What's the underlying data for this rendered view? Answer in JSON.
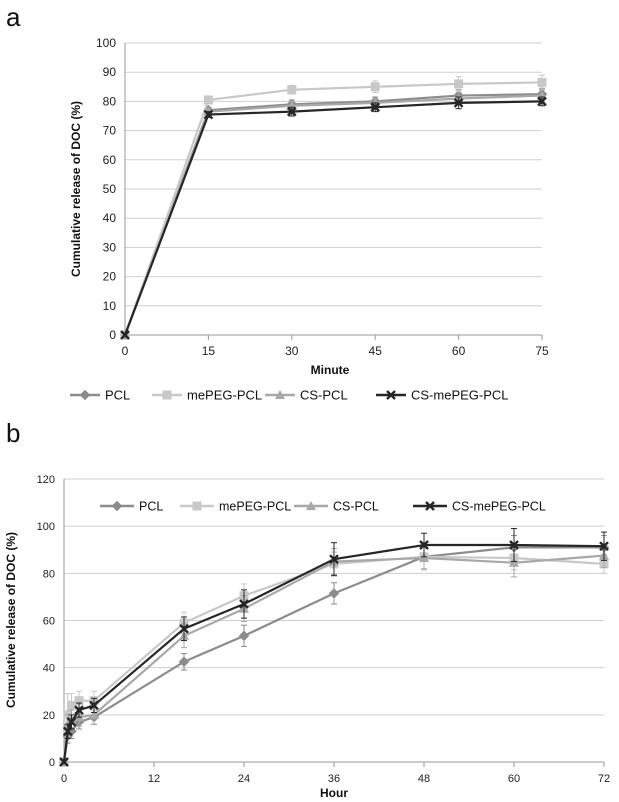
{
  "chart_data": [
    {
      "panel": "a",
      "type": "line",
      "xlabel": "Minute",
      "ylabel": "Cumulative release of DOC (%)",
      "xlim": [
        0,
        75
      ],
      "ylim": [
        0,
        100
      ],
      "x_ticks": [
        0,
        15,
        30,
        45,
        60,
        75
      ],
      "y_ticks": [
        0,
        10,
        20,
        30,
        40,
        50,
        60,
        70,
        80,
        90,
        100
      ],
      "grid": true,
      "legend_position": "bottom",
      "x": [
        0,
        15,
        30,
        45,
        60,
        75
      ],
      "series": [
        {
          "name": "PCL",
          "marker": "diamond",
          "color": "#8c8c8c",
          "values": [
            0,
            77,
            79,
            80,
            82,
            82.5
          ],
          "errors": [
            0,
            1,
            1.5,
            1.5,
            2,
            2
          ]
        },
        {
          "name": "mePEG-PCL",
          "marker": "square",
          "color": "#c8c8c8",
          "values": [
            0,
            80.5,
            84,
            85,
            86,
            86.5
          ],
          "errors": [
            0,
            1,
            1.5,
            2,
            2.5,
            2.5
          ]
        },
        {
          "name": "CS-PCL",
          "marker": "triangle",
          "color": "#a8a8a8",
          "values": [
            0,
            76.5,
            78.5,
            79.5,
            81,
            82
          ],
          "errors": [
            0,
            1,
            1.5,
            1.5,
            2,
            2
          ]
        },
        {
          "name": "CS-mePEG-PCL",
          "marker": "x",
          "color": "#262626",
          "values": [
            0,
            75.5,
            76.5,
            78,
            79.5,
            80
          ],
          "errors": [
            0,
            1,
            1.5,
            1.5,
            2,
            1.5
          ]
        }
      ]
    },
    {
      "panel": "b",
      "type": "line",
      "xlabel": "Hour",
      "ylabel": "Cumulative release of DOC (%)",
      "xlim": [
        0,
        72
      ],
      "ylim": [
        0,
        120
      ],
      "x_ticks": [
        0,
        12,
        24,
        36,
        48,
        60,
        72
      ],
      "y_ticks": [
        0,
        20,
        40,
        60,
        80,
        100,
        120
      ],
      "grid": true,
      "legend_position": "top",
      "x": [
        0,
        0.5,
        1,
        2,
        4,
        16,
        24,
        36,
        48,
        60,
        72
      ],
      "series": [
        {
          "name": "PCL",
          "marker": "diamond",
          "color": "#8c8c8c",
          "values": [
            0,
            11,
            13,
            17,
            19,
            42.5,
            53.5,
            71.5,
            87,
            91,
            91
          ],
          "errors": [
            0,
            3,
            3,
            3,
            3,
            3.5,
            4.5,
            4.5,
            5,
            5,
            5
          ]
        },
        {
          "name": "mePEG-PCL",
          "marker": "square",
          "color": "#c8c8c8",
          "values": [
            0,
            20,
            24,
            26,
            26,
            59,
            70.5,
            84,
            87,
            86.5,
            84
          ],
          "errors": [
            0,
            9,
            5,
            4,
            4,
            4.5,
            5,
            5,
            5,
            5,
            4
          ]
        },
        {
          "name": "CS-PCL",
          "marker": "triangle",
          "color": "#a8a8a8",
          "values": [
            0,
            16,
            18,
            19,
            20,
            53.5,
            65,
            85,
            86.5,
            84.5,
            87.5
          ],
          "errors": [
            0,
            4,
            4,
            4,
            4,
            5,
            5.5,
            5.5,
            5,
            6,
            5
          ]
        },
        {
          "name": "CS-mePEG-PCL",
          "marker": "x",
          "color": "#262626",
          "values": [
            0,
            13,
            17,
            22,
            24,
            56.5,
            67,
            86,
            92,
            92,
            91.5
          ],
          "errors": [
            0,
            3,
            3,
            3,
            3,
            5,
            6,
            7,
            5,
            7,
            6
          ]
        }
      ]
    }
  ]
}
